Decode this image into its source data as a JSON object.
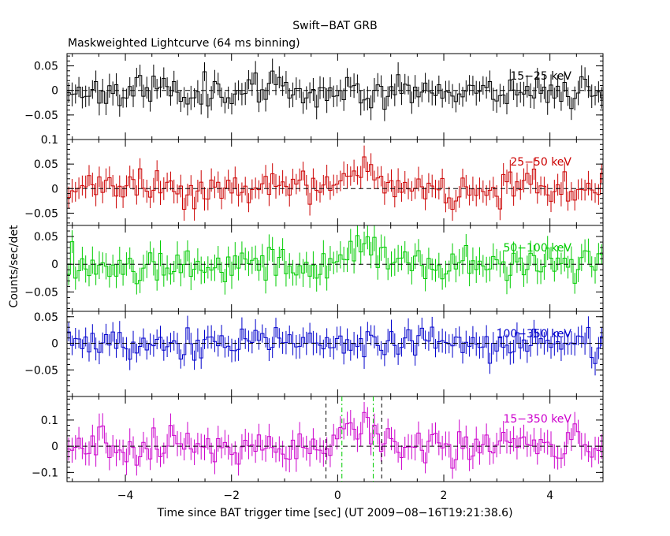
{
  "chart_data": {
    "type": "line",
    "title": "Swift−BAT GRB",
    "subtitle": "Maskweighted Lightcurve (64 ms binning)",
    "xlabel": "Time since BAT trigger time [sec] (UT 2009−08−16T19:21:38.6)",
    "ylabel": "Counts/sec/det",
    "xlim": [
      -5.1,
      5.0
    ],
    "xticks": [
      -4,
      -2,
      0,
      2,
      4
    ],
    "xtick_labels": [
      "−4",
      "−2",
      "0",
      "2",
      "4"
    ],
    "bin_width_sec": 0.064,
    "dashed_zero_line": true,
    "colors": {
      "15-25": "#000000",
      "25-50": "#cc0000",
      "50-100": "#00cc00",
      "100-350": "#0000cc",
      "15-350": "#cc00cc",
      "marker_black": "#000000",
      "marker_green": "#00cc00"
    },
    "panels": [
      {
        "name": "15−25 keV",
        "color_key": "15-25",
        "ylim": [
          -0.1,
          0.075
        ],
        "yticks": [
          -0.05,
          0,
          0.05
        ],
        "ytick_labels": [
          "−0.05",
          "0",
          "0.05"
        ],
        "noise_amp": 0.022,
        "seed": 11,
        "bumps": []
      },
      {
        "name": "25−50 keV",
        "color_key": "25-50",
        "ylim": [
          -0.075,
          0.1
        ],
        "yticks": [
          -0.05,
          0,
          0.05,
          0.1
        ],
        "ytick_labels": [
          "−0.05",
          "0",
          "0.05",
          "0.1"
        ],
        "noise_amp": 0.022,
        "seed": 23,
        "bumps": [
          {
            "center": 0.5,
            "width": 0.6,
            "height": 0.03
          }
        ]
      },
      {
        "name": "50−100 keV",
        "color_key": "50-100",
        "ylim": [
          -0.085,
          0.07
        ],
        "yticks": [
          -0.05,
          0,
          0.05
        ],
        "ytick_labels": [
          "−0.05",
          "0",
          "0.05"
        ],
        "noise_amp": 0.022,
        "seed": 37,
        "bumps": [
          {
            "center": 0.6,
            "width": 0.6,
            "height": 0.025
          }
        ]
      },
      {
        "name": "100−350 keV",
        "color_key": "100-350",
        "ylim": [
          -0.1,
          0.06
        ],
        "yticks": [
          -0.05,
          0,
          0.05
        ],
        "ytick_labels": [
          "−0.05",
          "0",
          "0.05"
        ],
        "noise_amp": 0.02,
        "seed": 53,
        "bumps": []
      },
      {
        "name": "15−350 keV",
        "color_key": "15-350",
        "ylim": [
          -0.135,
          0.19
        ],
        "yticks": [
          -0.1,
          0,
          0.1
        ],
        "ytick_labels": [
          "−0.1",
          "0",
          "0.1"
        ],
        "noise_amp": 0.045,
        "seed": 71,
        "bumps": [
          {
            "center": 0.4,
            "width": 0.7,
            "height": 0.08
          }
        ]
      }
    ],
    "markers": {
      "black_dashed_x": [
        -0.22,
        0.83
      ],
      "green_dashdot_x": [
        0.08,
        0.67
      ]
    }
  }
}
